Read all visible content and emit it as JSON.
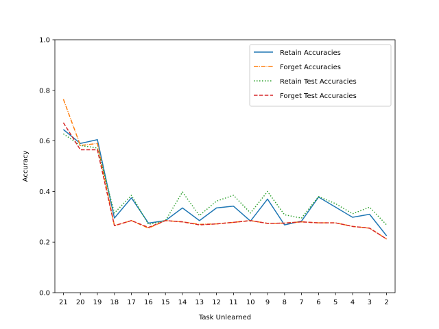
{
  "chart_data": {
    "type": "line",
    "title": "",
    "xlabel": "Task Unlearned",
    "ylabel": "Accuracy",
    "ylim": [
      0.0,
      1.0
    ],
    "yticks": [
      "0.0",
      "0.2",
      "0.4",
      "0.6",
      "0.8",
      "1.0"
    ],
    "categories": [
      "21",
      "20",
      "19",
      "18",
      "17",
      "16",
      "15",
      "14",
      "13",
      "12",
      "11",
      "10",
      "9",
      "8",
      "7",
      "6",
      "5",
      "4",
      "3",
      "2"
    ],
    "grid": false,
    "legend_position": "top-right",
    "series": [
      {
        "name": "Retain Accuracies",
        "color": "#1f77b4",
        "dash": "solid",
        "values": [
          0.645,
          0.59,
          0.605,
          0.295,
          0.375,
          0.275,
          0.285,
          0.335,
          0.285,
          0.335,
          0.342,
          0.283,
          0.37,
          0.268,
          0.283,
          0.378,
          0.338,
          0.298,
          0.31,
          0.225
        ]
      },
      {
        "name": "Forget Accuracies",
        "color": "#ff7f0e",
        "dash": "dashdot",
        "values": [
          0.765,
          0.582,
          0.59,
          0.265,
          0.285,
          0.255,
          0.285,
          0.28,
          0.27,
          0.272,
          0.278,
          0.285,
          0.274,
          0.275,
          0.28,
          0.276,
          0.276,
          0.262,
          0.255,
          0.212
        ]
      },
      {
        "name": "Retain Test Accuracies",
        "color": "#2ca02c",
        "dash": "dotted",
        "values": [
          0.628,
          0.582,
          0.572,
          0.315,
          0.385,
          0.27,
          0.285,
          0.398,
          0.305,
          0.362,
          0.385,
          0.315,
          0.4,
          0.308,
          0.295,
          0.38,
          0.352,
          0.312,
          0.338,
          0.268
        ]
      },
      {
        "name": "Forget Test Accuracies",
        "color": "#d62728",
        "dash": "dashed",
        "values": [
          0.672,
          0.565,
          0.565,
          0.265,
          0.285,
          0.258,
          0.285,
          0.28,
          0.268,
          0.272,
          0.278,
          0.285,
          0.274,
          0.275,
          0.28,
          0.276,
          0.276,
          0.262,
          0.255,
          0.212
        ]
      }
    ]
  }
}
